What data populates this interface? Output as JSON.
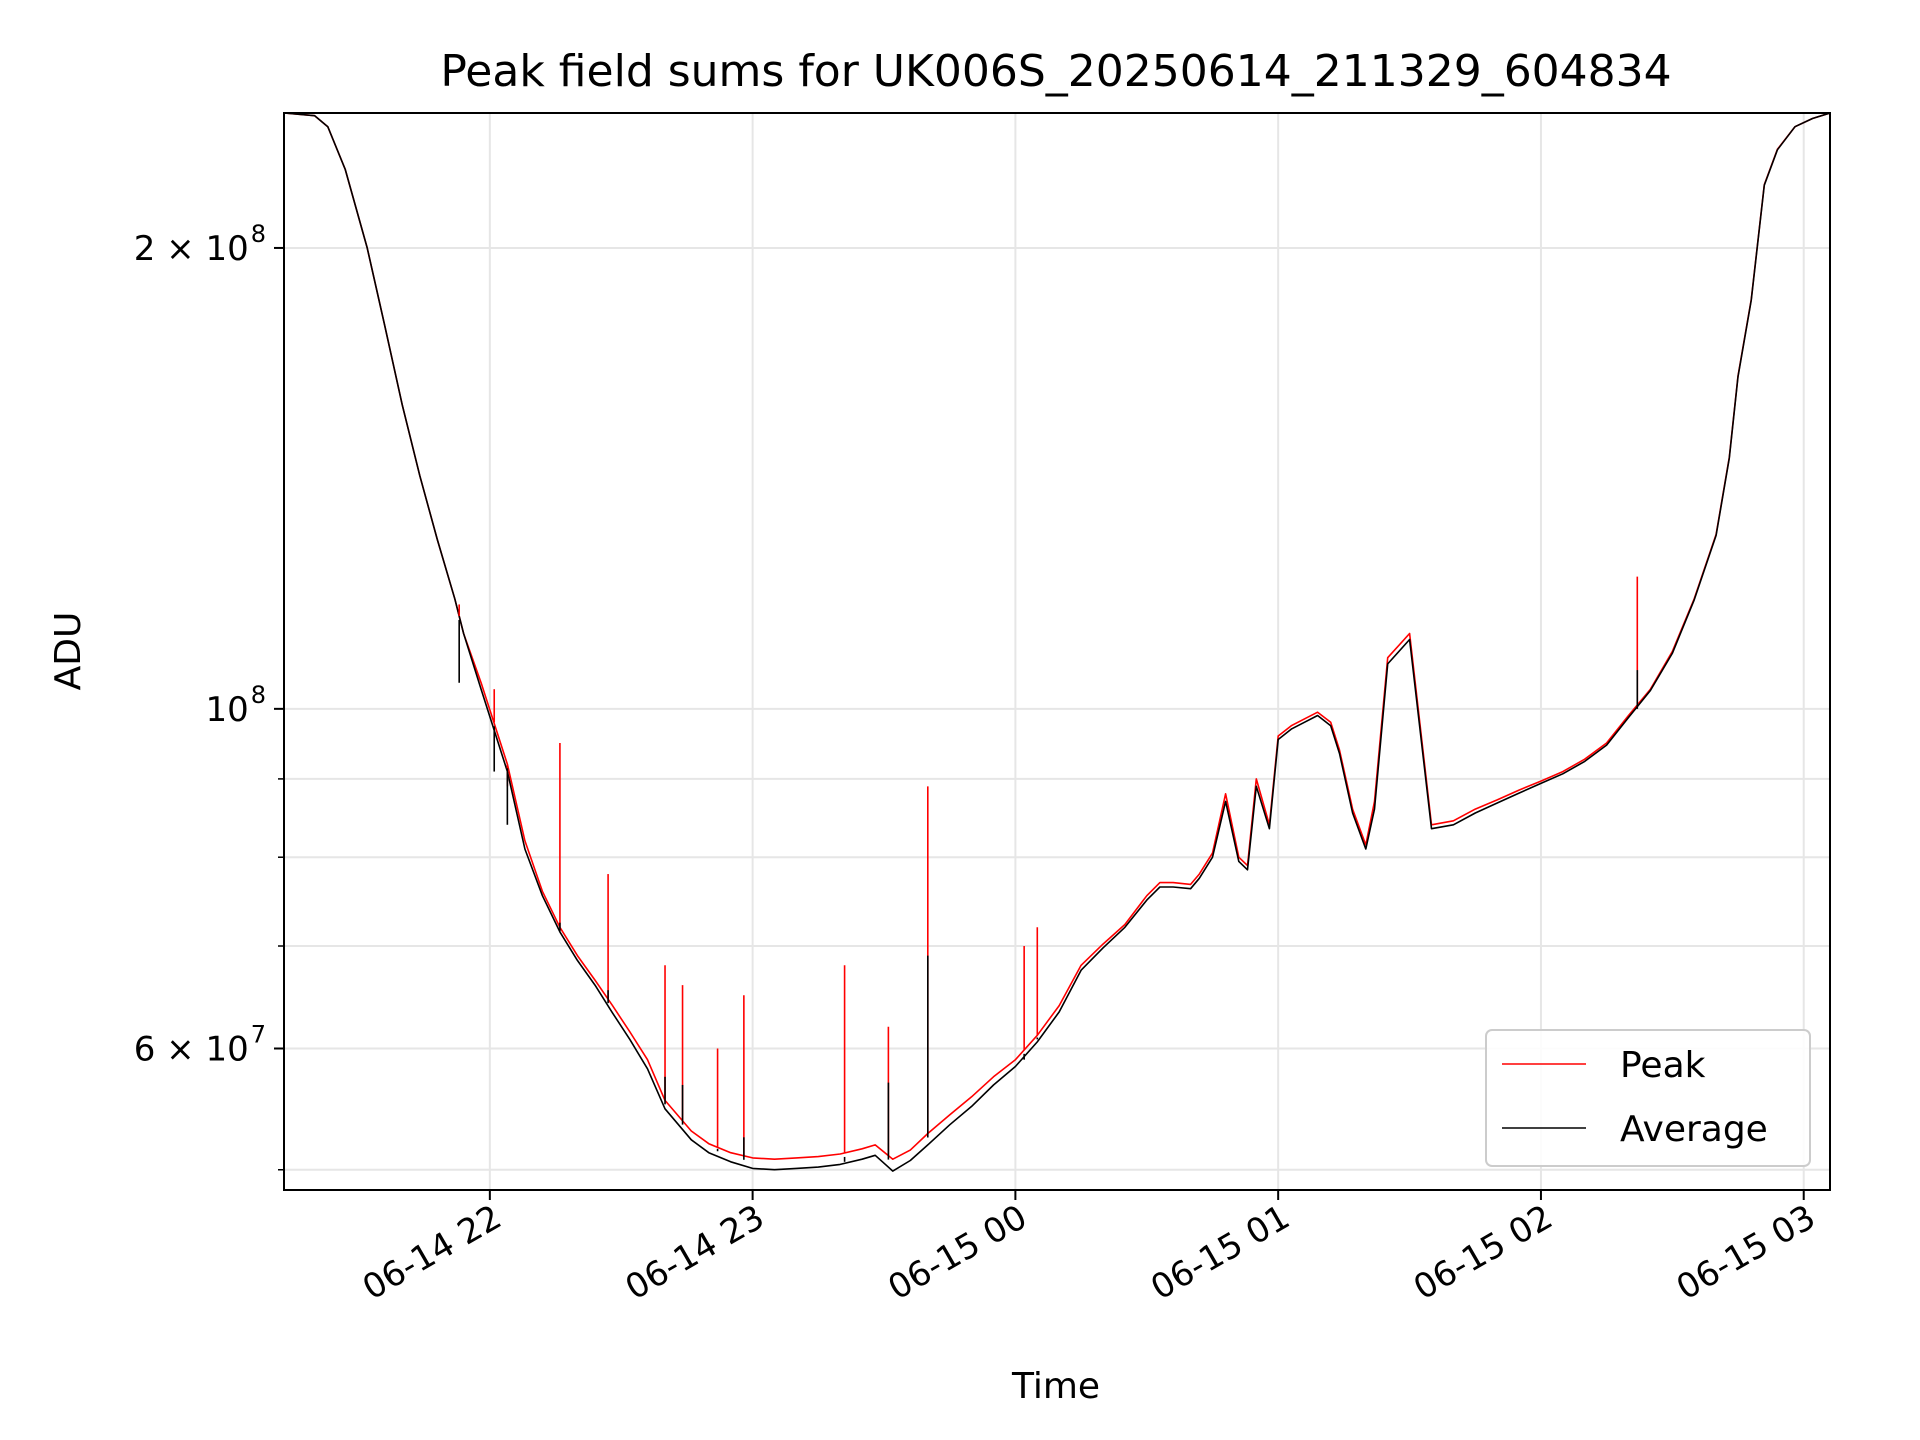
{
  "chart_data": {
    "type": "line",
    "title": "Peak field sums for UK006S_20250614_211329_604834",
    "xlabel": "Time",
    "ylabel": "ADU",
    "yscale": "log",
    "ylim": [
      48500000,
      245000000
    ],
    "xlim": [
      "2025-06-14 21:13",
      "2025-06-15 03:06"
    ],
    "grid": true,
    "legend_position": "lower right",
    "x_ticks": [
      {
        "t": "2025-06-14 22:00",
        "label": "06-14 22"
      },
      {
        "t": "2025-06-14 23:00",
        "label": "06-14 23"
      },
      {
        "t": "2025-06-15 00:00",
        "label": "06-15 00"
      },
      {
        "t": "2025-06-15 01:00",
        "label": "06-15 01"
      },
      {
        "t": "2025-06-15 02:00",
        "label": "06-15 02"
      },
      {
        "t": "2025-06-15 03:00",
        "label": "06-15 03"
      }
    ],
    "y_ticks_major": [
      {
        "v": 100000000,
        "base": "10",
        "exp": "8"
      },
      {
        "v": 200000000,
        "base": "2 × 10",
        "exp": "8"
      },
      {
        "v": 60000000,
        "base": "6 × 10",
        "exp": "7"
      }
    ],
    "y_ticks_minor": [
      50000000,
      70000000,
      80000000,
      90000000
    ],
    "series": [
      {
        "name": "Peak",
        "color": "#ff0000",
        "x": [
          "2025-06-14 21:13",
          "2025-06-14 21:20",
          "2025-06-14 21:23",
          "2025-06-14 21:27",
          "2025-06-14 21:32",
          "2025-06-14 21:36",
          "2025-06-14 21:40",
          "2025-06-14 21:44",
          "2025-06-14 21:48",
          "2025-06-14 21:52",
          "2025-06-14 21:54",
          "2025-06-14 21:58",
          "2025-06-14 22:04",
          "2025-06-14 22:08",
          "2025-06-14 22:12",
          "2025-06-14 22:16",
          "2025-06-14 22:20",
          "2025-06-14 22:24",
          "2025-06-14 22:28",
          "2025-06-14 22:32",
          "2025-06-14 22:36",
          "2025-06-14 22:40",
          "2025-06-14 22:46",
          "2025-06-14 22:50",
          "2025-06-14 22:55",
          "2025-06-14 23:00",
          "2025-06-14 23:05",
          "2025-06-14 23:10",
          "2025-06-14 23:15",
          "2025-06-14 23:20",
          "2025-06-14 23:25",
          "2025-06-14 23:28",
          "2025-06-14 23:32",
          "2025-06-14 23:36",
          "2025-06-14 23:40",
          "2025-06-14 23:45",
          "2025-06-14 23:50",
          "2025-06-14 23:55",
          "2025-06-15 00:00",
          "2025-06-15 00:05",
          "2025-06-15 00:10",
          "2025-06-15 00:15",
          "2025-06-15 00:20",
          "2025-06-15 00:25",
          "2025-06-15 00:30",
          "2025-06-15 00:33",
          "2025-06-15 00:36",
          "2025-06-15 00:40",
          "2025-06-15 00:42",
          "2025-06-15 00:45",
          "2025-06-15 00:48",
          "2025-06-15 00:51",
          "2025-06-15 00:53",
          "2025-06-15 00:55",
          "2025-06-15 00:58",
          "2025-06-15 01:00",
          "2025-06-15 01:03",
          "2025-06-15 01:06",
          "2025-06-15 01:09",
          "2025-06-15 01:12",
          "2025-06-15 01:14",
          "2025-06-15 01:17",
          "2025-06-15 01:20",
          "2025-06-15 01:22",
          "2025-06-15 01:25",
          "2025-06-15 01:30",
          "2025-06-15 01:35",
          "2025-06-15 01:40",
          "2025-06-15 01:45",
          "2025-06-15 01:50",
          "2025-06-15 01:55",
          "2025-06-15 02:00",
          "2025-06-15 02:05",
          "2025-06-15 02:10",
          "2025-06-15 02:15",
          "2025-06-15 02:20",
          "2025-06-15 02:25",
          "2025-06-15 02:30",
          "2025-06-15 02:35",
          "2025-06-15 02:40",
          "2025-06-15 02:43",
          "2025-06-15 02:45",
          "2025-06-15 02:48",
          "2025-06-15 02:51",
          "2025-06-15 02:54",
          "2025-06-15 02:58",
          "2025-06-15 03:02",
          "2025-06-15 03:06"
        ],
        "values": [
          245000000,
          244000000,
          240000000,
          225000000,
          200000000,
          178000000,
          158000000,
          142000000,
          129000000,
          118000000,
          112000000,
          104000000,
          92000000,
          82000000,
          76000000,
          72000000,
          69000000,
          66500000,
          64000000,
          61500000,
          59000000,
          55500000,
          53000000,
          52000000,
          51300000,
          50900000,
          50800000,
          50900000,
          51000000,
          51200000,
          51600000,
          51900000,
          50800000,
          51500000,
          52800000,
          54300000,
          55800000,
          57500000,
          59000000,
          61200000,
          64000000,
          68000000,
          70200000,
          72300000,
          75500000,
          77000000,
          77000000,
          76800000,
          78000000,
          80500000,
          88000000,
          80000000,
          79000000,
          90000000,
          84000000,
          96000000,
          97500000,
          98500000,
          99500000,
          98000000,
          94000000,
          86000000,
          81500000,
          87000000,
          108000000,
          112000000,
          84000000,
          84500000,
          86000000,
          87200000,
          88500000,
          89700000,
          91000000,
          92700000,
          95000000,
          99000000,
          103000000,
          109000000,
          118000000,
          130000000,
          146000000,
          165000000,
          185000000,
          220000000,
          232000000,
          240000000,
          243000000,
          245000000
        ]
      },
      {
        "name": "Average",
        "color": "#000000",
        "x": [
          "2025-06-14 21:13",
          "2025-06-14 21:20",
          "2025-06-14 21:23",
          "2025-06-14 21:27",
          "2025-06-14 21:32",
          "2025-06-14 21:36",
          "2025-06-14 21:40",
          "2025-06-14 21:44",
          "2025-06-14 21:48",
          "2025-06-14 21:52",
          "2025-06-14 21:54",
          "2025-06-14 21:58",
          "2025-06-14 22:04",
          "2025-06-14 22:08",
          "2025-06-14 22:12",
          "2025-06-14 22:16",
          "2025-06-14 22:20",
          "2025-06-14 22:24",
          "2025-06-14 22:28",
          "2025-06-14 22:32",
          "2025-06-14 22:36",
          "2025-06-14 22:40",
          "2025-06-14 22:46",
          "2025-06-14 22:50",
          "2025-06-14 22:55",
          "2025-06-14 23:00",
          "2025-06-14 23:05",
          "2025-06-14 23:10",
          "2025-06-14 23:15",
          "2025-06-14 23:20",
          "2025-06-14 23:25",
          "2025-06-14 23:28",
          "2025-06-14 23:32",
          "2025-06-14 23:36",
          "2025-06-14 23:40",
          "2025-06-14 23:45",
          "2025-06-14 23:50",
          "2025-06-14 23:55",
          "2025-06-15 00:00",
          "2025-06-15 00:05",
          "2025-06-15 00:10",
          "2025-06-15 00:15",
          "2025-06-15 00:20",
          "2025-06-15 00:25",
          "2025-06-15 00:30",
          "2025-06-15 00:33",
          "2025-06-15 00:36",
          "2025-06-15 00:40",
          "2025-06-15 00:42",
          "2025-06-15 00:45",
          "2025-06-15 00:48",
          "2025-06-15 00:51",
          "2025-06-15 00:53",
          "2025-06-15 00:55",
          "2025-06-15 00:58",
          "2025-06-15 01:00",
          "2025-06-15 01:03",
          "2025-06-15 01:06",
          "2025-06-15 01:09",
          "2025-06-15 01:12",
          "2025-06-15 01:14",
          "2025-06-15 01:17",
          "2025-06-15 01:20",
          "2025-06-15 01:22",
          "2025-06-15 01:25",
          "2025-06-15 01:30",
          "2025-06-15 01:35",
          "2025-06-15 01:40",
          "2025-06-15 01:45",
          "2025-06-15 01:50",
          "2025-06-15 01:55",
          "2025-06-15 02:00",
          "2025-06-15 02:05",
          "2025-06-15 02:10",
          "2025-06-15 02:15",
          "2025-06-15 02:20",
          "2025-06-15 02:25",
          "2025-06-15 02:30",
          "2025-06-15 02:35",
          "2025-06-15 02:40",
          "2025-06-15 02:43",
          "2025-06-15 02:45",
          "2025-06-15 02:48",
          "2025-06-15 02:51",
          "2025-06-15 02:54",
          "2025-06-15 02:58",
          "2025-06-15 03:02",
          "2025-06-15 03:06"
        ],
        "values": [
          245000000,
          244000000,
          240000000,
          225000000,
          200000000,
          178000000,
          158000000,
          142000000,
          129000000,
          118000000,
          112000000,
          103000000,
          91000000,
          81000000,
          75500000,
          71500000,
          68500000,
          66000000,
          63300000,
          60800000,
          58200000,
          54800000,
          52300000,
          51300000,
          50600000,
          50100000,
          50000000,
          50100000,
          50200000,
          50400000,
          50800000,
          51100000,
          49900000,
          50700000,
          51900000,
          53500000,
          55000000,
          56800000,
          58400000,
          60600000,
          63400000,
          67500000,
          69800000,
          72000000,
          75000000,
          76500000,
          76500000,
          76300000,
          77500000,
          80000000,
          87000000,
          79500000,
          78500000,
          89000000,
          83500000,
          95500000,
          97000000,
          98000000,
          99000000,
          97500000,
          93500000,
          85500000,
          81000000,
          86000000,
          107000000,
          111000000,
          83500000,
          84000000,
          85500000,
          86800000,
          88100000,
          89400000,
          90700000,
          92400000,
          94700000,
          98700000,
          102800000,
          108700000,
          117800000,
          129800000,
          145800000,
          164800000,
          184800000,
          219800000,
          231800000,
          240000000,
          243000000,
          245000000
        ]
      }
    ],
    "spikes": [
      {
        "x": "2025-06-14 21:53",
        "peak": 117000000,
        "average": 104000000
      },
      {
        "x": "2025-06-14 22:01",
        "peak": 103000000,
        "average": 91000000
      },
      {
        "x": "2025-06-14 22:04",
        "peak": 89000000,
        "average": 84000000
      },
      {
        "x": "2025-06-14 22:16",
        "peak": 95000000,
        "average": 72500000
      },
      {
        "x": "2025-06-14 22:27",
        "peak": 78000000,
        "average": 65500000
      },
      {
        "x": "2025-06-14 22:40",
        "peak": 68000000,
        "average": 57500000
      },
      {
        "x": "2025-06-14 22:44",
        "peak": 66000000,
        "average": 56800000
      },
      {
        "x": "2025-06-14 22:52",
        "peak": 60000000,
        "average": 51600000
      },
      {
        "x": "2025-06-14 22:58",
        "peak": 65000000,
        "average": 52500000
      },
      {
        "x": "2025-06-14 23:21",
        "peak": 68000000,
        "average": 50600000
      },
      {
        "x": "2025-06-14 23:31",
        "peak": 62000000,
        "average": 57000000
      },
      {
        "x": "2025-06-14 23:40",
        "peak": 89000000,
        "average": 69000000
      },
      {
        "x": "2025-06-15 00:02",
        "peak": 70000000,
        "average": 59000000
      },
      {
        "x": "2025-06-15 00:05",
        "peak": 72000000,
        "average": 61000000
      },
      {
        "x": "2025-06-15 02:22",
        "peak": 122000000,
        "average": 106000000
      }
    ]
  }
}
